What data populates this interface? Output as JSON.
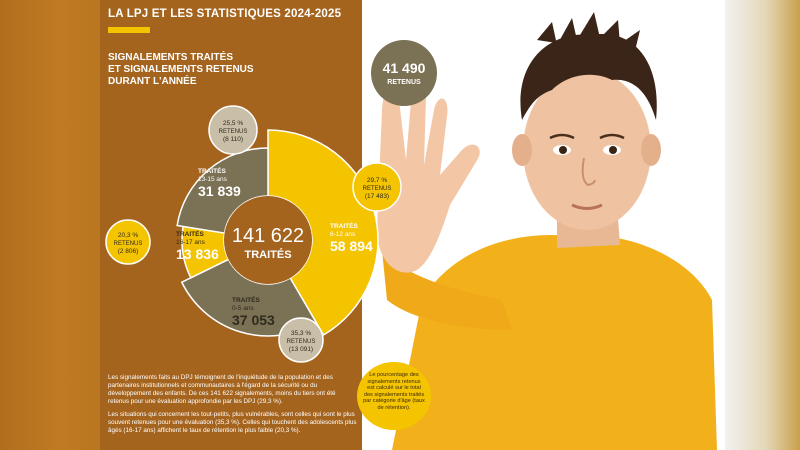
{
  "header": {
    "title": "LA LPJ ET LES STATISTIQUES 2024-2025"
  },
  "section_title": [
    "SIGNALEMENTS TRAITÉS",
    "ET SIGNALEMENTS RETENUS",
    "DURANT L'ANNÉE"
  ],
  "retained_total": {
    "value": "41 490",
    "label": "RETENUS"
  },
  "footnote": "Le pourcentage des signalements retenus est calculé sur le total des signalements traités par catégorie d'âge (taux de rétention).",
  "paragraphs": [
    "Les signalements faits au DPJ témoignent de l'inquiétude de la population et des partenaires institutionnels et communautaires à l'égard de la sécurité ou du développement des enfants. De ces 141 622 signalements, moins du tiers ont été retenus pour une évaluation approfondie par les DPJ (29,3 %).",
    "Les situations qui concernent les tout-petits, plus vulnérables, sont celles qui sont le plus souvent retenues pour une évaluation (35,3 %). Celles qui touchent des adolescents plus âgés (16-17 ans) affichent le taux de rétention le plus faible (20,3 %)."
  ],
  "colors": {
    "panel": "#a5641e",
    "yellow": "#f5c400",
    "olive": "#7b7154",
    "gray": "#c9bfa8"
  },
  "chart_data": {
    "type": "pie",
    "center": {
      "value": "141 622",
      "label": "TRAITÉS"
    },
    "series": [
      {
        "treated_label": "TRAITÉS",
        "age": "6-12 ans",
        "treated_text": "58 894",
        "treated": 58894,
        "retained_pct": "29,7 %",
        "retained_label": "RETENUS",
        "retained_text": "(17 483)",
        "color": "#f5c400",
        "bubble_color": "#f5c400"
      },
      {
        "treated_label": "TRAITÉS",
        "age": "0-5 ans",
        "treated_text": "37 053",
        "treated": 37053,
        "retained_pct": "35,3 %",
        "retained_label": "RETENUS",
        "retained_text": "(13 091)",
        "color": "#7b7154",
        "bubble_color": "#c9bfa8"
      },
      {
        "treated_label": "TRAITÉS",
        "age": "16-17 ans",
        "treated_text": "13 836",
        "treated": 13836,
        "retained_pct": "20,3 %",
        "retained_label": "RETENUS",
        "retained_text": "(2 806)",
        "color": "#f5c400",
        "bubble_color": "#f5c400"
      },
      {
        "treated_label": "TRAITÉS",
        "age": "13-15 ans",
        "treated_text": "31 839",
        "treated": 31839,
        "retained_pct": "25,5 %",
        "retained_label": "RETENUS",
        "retained_text": "(8 110)",
        "color": "#7b7154",
        "bubble_color": "#c9bfa8"
      }
    ]
  }
}
